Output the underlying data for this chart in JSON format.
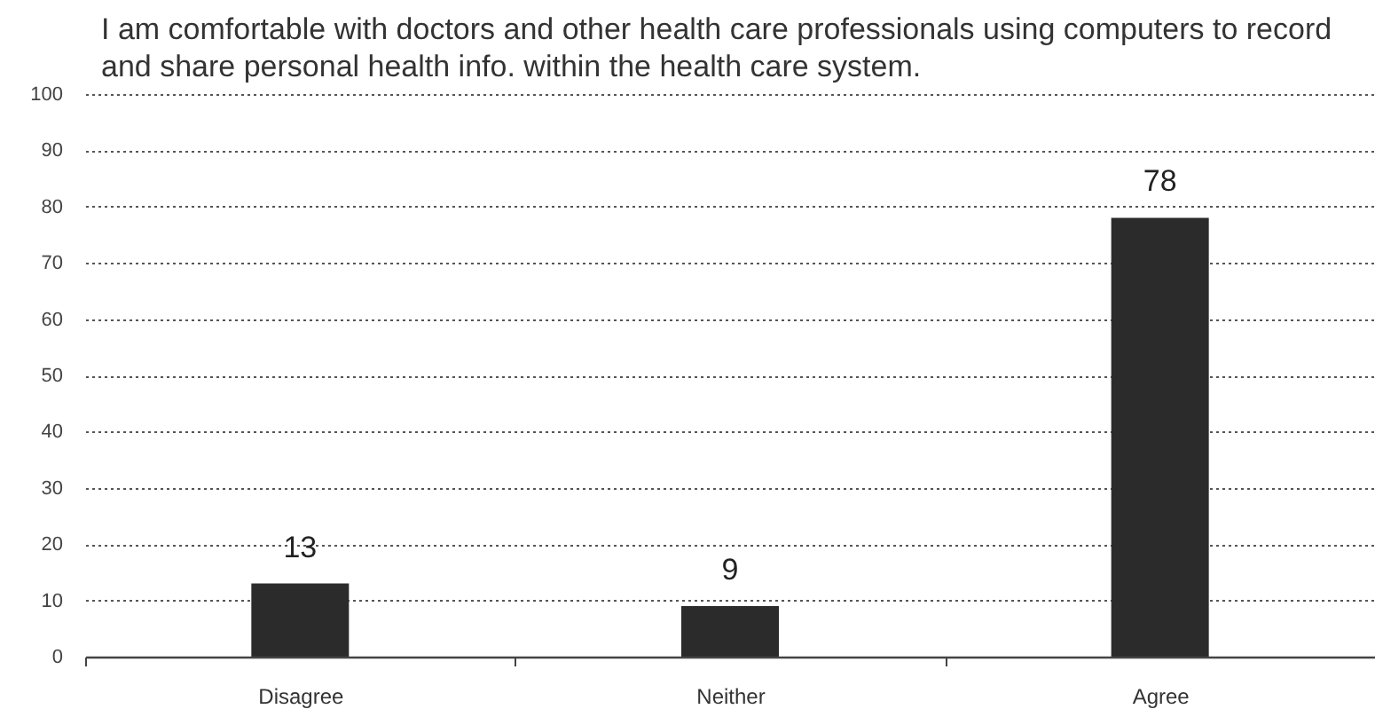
{
  "chart_data": {
    "type": "bar",
    "title": "I am comfortable with doctors and other health care professionals using computers to record and share personal health info. within the health care system.",
    "categories": [
      "Disagree",
      "Neither",
      "Agree"
    ],
    "values": [
      13,
      9,
      78
    ],
    "color": "#2b2b2b",
    "ylim": [
      0,
      100
    ],
    "yticks": [
      0,
      10,
      20,
      30,
      40,
      50,
      60,
      70,
      80,
      90,
      100
    ],
    "grid": "y",
    "data_labels": true
  }
}
